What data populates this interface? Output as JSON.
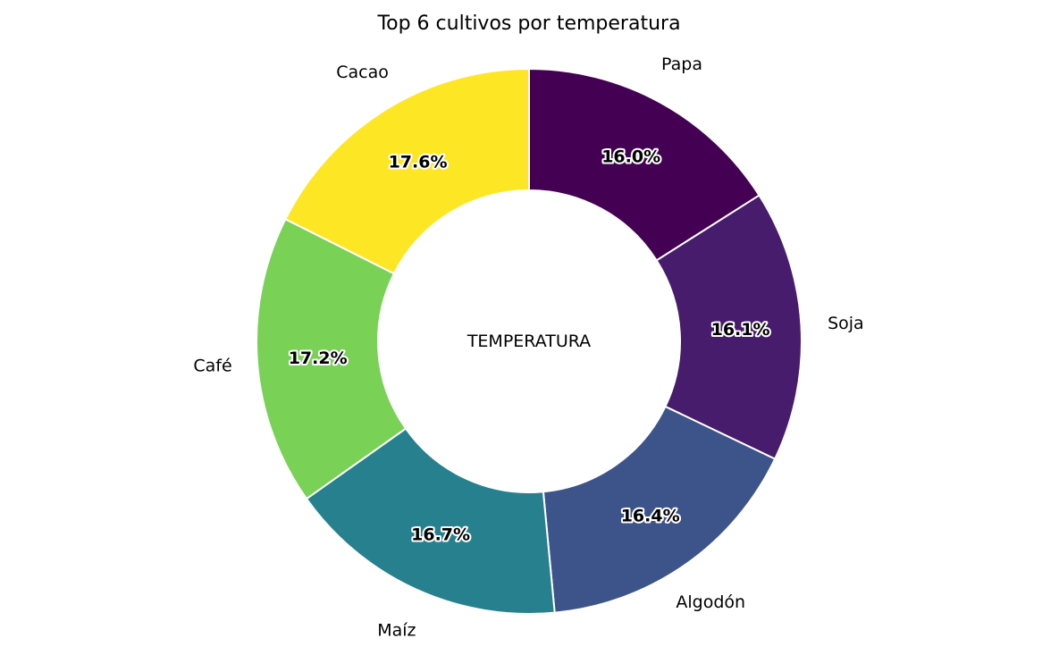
{
  "chart_data": {
    "type": "pie",
    "title": "Top 6 cultivos por temperatura",
    "center_label": "TEMPERATURA",
    "start": "top",
    "direction": "clockwise",
    "slices": [
      {
        "label": "Papa",
        "value": 16.0,
        "pct_label": "16.0%",
        "color": "#440154"
      },
      {
        "label": "Soja",
        "value": 16.1,
        "pct_label": "16.1%",
        "color": "#471c6c"
      },
      {
        "label": "Algodón",
        "value": 16.4,
        "pct_label": "16.4%",
        "color": "#3d548a"
      },
      {
        "label": "Maíz",
        "value": 16.7,
        "pct_label": "16.7%",
        "color": "#27808e"
      },
      {
        "label": "Café",
        "value": 17.2,
        "pct_label": "17.2%",
        "color": "#79d155"
      },
      {
        "label": "Cacao",
        "value": 17.6,
        "pct_label": "17.6%",
        "color": "#fde725"
      }
    ]
  }
}
